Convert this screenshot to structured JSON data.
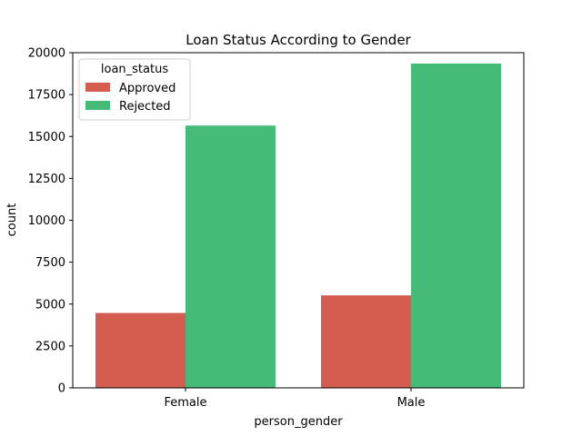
{
  "chart_data": {
    "type": "bar",
    "title": "Loan Status According to Gender",
    "xlabel": "person_gender",
    "ylabel": "count",
    "categories": [
      "Female",
      "Male"
    ],
    "series": [
      {
        "name": "Approved",
        "values": [
          4470,
          5520
        ],
        "color": "#d55d4f"
      },
      {
        "name": "Rejected",
        "values": [
          15650,
          19350
        ],
        "color": "#44bb77"
      }
    ],
    "ylim": [
      0,
      20000
    ],
    "yticks": [
      0,
      2500,
      5000,
      7500,
      10000,
      12500,
      15000,
      17500,
      20000
    ],
    "grid": false,
    "legend": {
      "title": "loan_status",
      "placement": "top-left"
    }
  }
}
